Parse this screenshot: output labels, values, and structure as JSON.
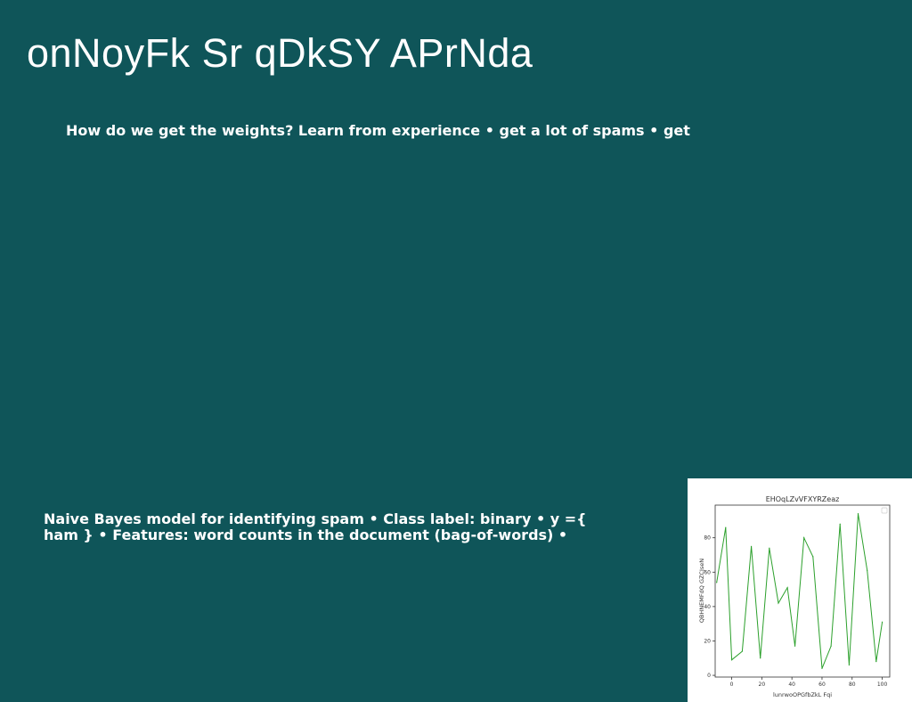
{
  "slide": {
    "title": "onNoyFk Sr qDkSY APrNda",
    "paragraph_1": "How do we get the weights? Learn from experience • get a lot of spams • get",
    "paragraph_2": "Naive Bayes model for identifying spam • Class label: binary • y ={ ham } • Features: word counts in the document (bag-of-words) •"
  },
  "chart_data": {
    "type": "line",
    "title": "EHOqLZvVFXYRZeaz",
    "xlabel": "lunrwoOPGfbZkL Fqi",
    "ylabel": "QBHNEMFdQ GZCJseN",
    "xlim": [
      -11,
      105
    ],
    "ylim": [
      -1,
      99
    ],
    "xticks": [
      0,
      20,
      40,
      60,
      80,
      100
    ],
    "yticks": [
      0,
      20,
      40,
      60,
      80
    ],
    "grid": false,
    "legend": "top-right",
    "color": "#2ca02c",
    "series": [
      {
        "x": [
          -10,
          -4,
          0,
          7,
          13,
          19,
          25,
          31,
          37,
          42,
          48,
          54,
          60,
          66,
          72,
          78,
          84,
          90,
          96,
          100
        ],
        "y": [
          54,
          86,
          9,
          14,
          75,
          10,
          74,
          42,
          51,
          17,
          80,
          69,
          4,
          17,
          88,
          6,
          94,
          61,
          8,
          31
        ]
      }
    ]
  }
}
